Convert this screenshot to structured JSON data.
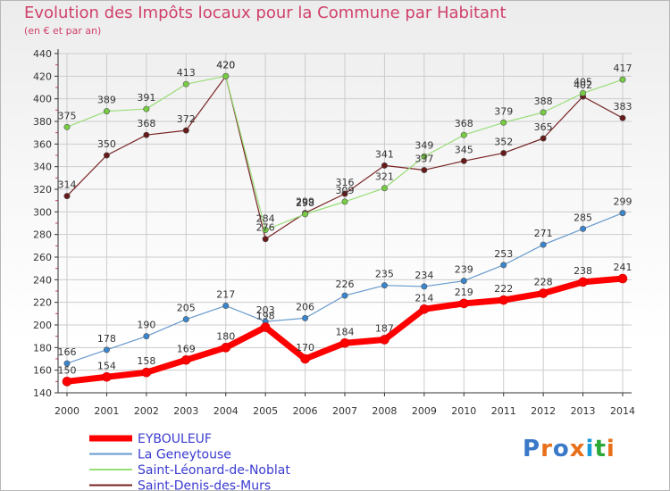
{
  "title": "Evolution des Impôts locaux pour la Commune par Habitant",
  "subtitle": "(en € et par an)",
  "logo": {
    "text": "Proxiti",
    "colors": [
      "#3a78c8",
      "#e8701a",
      "#3a78c8",
      "#e8701a",
      "#1a9ad8",
      "#2aa838",
      "#e8701a"
    ]
  },
  "chart_data": {
    "type": "line",
    "x": [
      "2000",
      "2001",
      "2002",
      "2003",
      "2004",
      "2005",
      "2006",
      "2007",
      "2008",
      "2009",
      "2010",
      "2011",
      "2012",
      "2013",
      "2014"
    ],
    "ylim": [
      140,
      440
    ],
    "yticks": [
      "140",
      "160",
      "180",
      "200",
      "220",
      "240",
      "260",
      "280",
      "300",
      "320",
      "340",
      "360",
      "380",
      "400",
      "420",
      "440"
    ],
    "grid": true,
    "legend_position": "bottom-left",
    "series": [
      {
        "name": "EYBOULEUF",
        "color": "#ff0000",
        "width": 7,
        "marker_color": "#ff0000",
        "values": [
          150,
          154,
          158,
          169,
          180,
          198,
          170,
          184,
          187,
          214,
          219,
          222,
          228,
          238,
          241
        ]
      },
      {
        "name": "La Geneytouse",
        "color": "#6699cc",
        "width": 1.2,
        "marker_color": "#3a85cc",
        "values": [
          166,
          178,
          190,
          205,
          217,
          203,
          206,
          226,
          235,
          234,
          239,
          253,
          271,
          285,
          299
        ]
      },
      {
        "name": "Saint-Léonard-de-Noblat",
        "color": "#99dd77",
        "width": 1.2,
        "marker_color": "#77cc44",
        "values": [
          375,
          389,
          391,
          413,
          420,
          284,
          298,
          309,
          321,
          349,
          368,
          379,
          388,
          405,
          417
        ]
      },
      {
        "name": "Saint-Denis-des-Murs",
        "color": "#772222",
        "width": 1.2,
        "marker_color": "#661a1a",
        "values": [
          314,
          350,
          368,
          372,
          420,
          276,
          299,
          316,
          341,
          337,
          345,
          352,
          365,
          402,
          383
        ]
      }
    ]
  }
}
